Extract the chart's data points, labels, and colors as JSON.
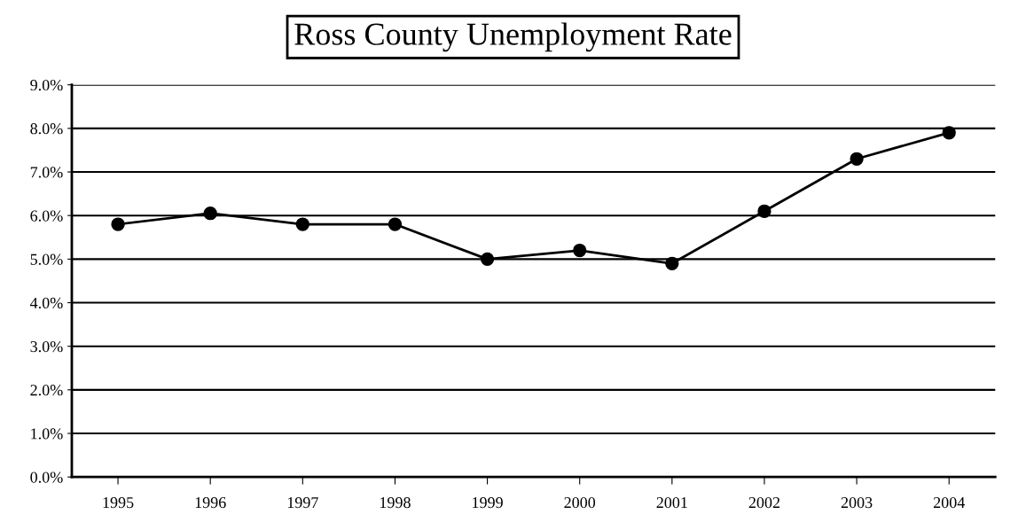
{
  "chart_data": {
    "type": "line",
    "title": "Ross County Unemployment Rate",
    "categories": [
      "1995",
      "1996",
      "1997",
      "1998",
      "1999",
      "2000",
      "2001",
      "2002",
      "2003",
      "2004"
    ],
    "series": [
      {
        "color": "#000000",
        "values": [
          5.8,
          6.05,
          5.8,
          5.8,
          5.0,
          5.2,
          4.9,
          6.1,
          7.3,
          7.9
        ]
      }
    ],
    "ylim": [
      0,
      9
    ],
    "yticks": [
      {
        "value": 0,
        "label": "0.0%"
      },
      {
        "value": 1,
        "label": "1.0%"
      },
      {
        "value": 2,
        "label": "2.0%"
      },
      {
        "value": 3,
        "label": "3.0%"
      },
      {
        "value": 4,
        "label": "4.0%"
      },
      {
        "value": 5,
        "label": "5.0%"
      },
      {
        "value": 6,
        "label": "6.0%"
      },
      {
        "value": 7,
        "label": "7.0%"
      },
      {
        "value": 8,
        "label": "8.0%"
      },
      {
        "value": 9,
        "label": "9.0%"
      }
    ],
    "grid": "y",
    "marker": "circle",
    "line_style": "solid",
    "legend": false
  }
}
